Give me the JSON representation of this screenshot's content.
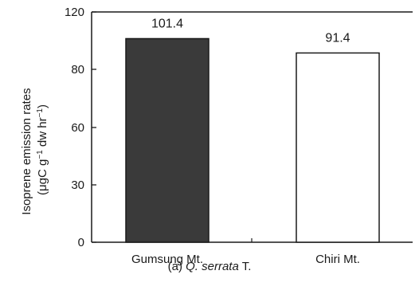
{
  "chart_data": {
    "type": "bar",
    "categories": [
      "Gumsung Mt.",
      "Chiri Mt."
    ],
    "values": [
      101.4,
      91.4
    ],
    "data_labels": [
      "101.4",
      "91.4"
    ],
    "bar_colors": [
      "#3a3a3a",
      "#ffffff"
    ],
    "ylabel_line1": "Isoprene emission rates",
    "ylabel_prefix": "(μgC g",
    "ylabel_sup1": "−1",
    "ylabel_mid": " dw hr",
    "ylabel_sup2": "−1",
    "ylabel_suffix": ")",
    "y_ticks": [
      0,
      30,
      60,
      80,
      120
    ],
    "y_tick_labels": [
      "0",
      "30",
      "60",
      "80",
      "120"
    ],
    "ylim": [
      0,
      120
    ],
    "grid": false
  },
  "caption": {
    "prefix": "(a) ",
    "species": "Q. serrata",
    "suffix": " T."
  }
}
